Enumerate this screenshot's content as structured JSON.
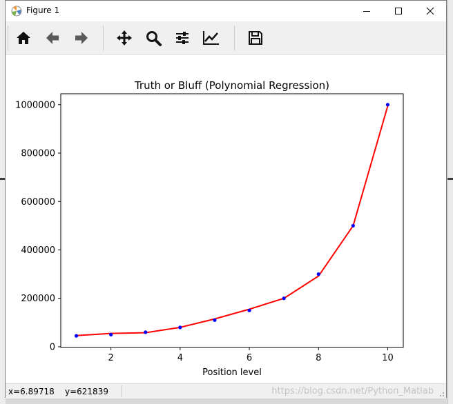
{
  "window": {
    "title": "Figure 1",
    "controls": {
      "minimize": "minimize",
      "maximize": "maximize",
      "close": "close"
    }
  },
  "toolbar": {
    "tools": [
      {
        "name": "home",
        "icon": "home-icon"
      },
      {
        "name": "back",
        "icon": "arrow-left-icon"
      },
      {
        "name": "forward",
        "icon": "arrow-right-icon"
      },
      {
        "name": "pan",
        "icon": "move-icon"
      },
      {
        "name": "zoom",
        "icon": "zoom-icon"
      },
      {
        "name": "subplots",
        "icon": "sliders-icon"
      },
      {
        "name": "edit-axes",
        "icon": "line-chart-icon"
      },
      {
        "name": "save",
        "icon": "save-icon"
      }
    ]
  },
  "status": {
    "x_readout": "x=6.89718",
    "y_readout": "y=621839",
    "watermark": "https://blog.csdn.net/Python_Matlab"
  },
  "chart_data": {
    "type": "line",
    "title": "Truth or Bluff (Polynomial Regression)",
    "xlabel": "Position level",
    "ylabel": "",
    "xlim": [
      0.55,
      10.45
    ],
    "ylim": [
      -3000,
      1045000
    ],
    "xticks": [
      2,
      4,
      6,
      8,
      10
    ],
    "yticks": [
      0,
      200000,
      400000,
      600000,
      800000,
      1000000
    ],
    "grid": false,
    "series": [
      {
        "kind": "scatter",
        "color": "#0000ff",
        "x": [
          1,
          2,
          3,
          4,
          5,
          6,
          7,
          8,
          9,
          10
        ],
        "values": [
          45000,
          50000,
          60000,
          80000,
          110000,
          150000,
          200000,
          300000,
          500000,
          1000000
        ]
      },
      {
        "kind": "line",
        "color": "#ff0000",
        "x": [
          1,
          2,
          3,
          4,
          5,
          6,
          7,
          8,
          9,
          10
        ],
        "values": [
          46000,
          55000,
          58000,
          80000,
          115000,
          155000,
          200000,
          292000,
          500000,
          995000
        ]
      }
    ]
  }
}
